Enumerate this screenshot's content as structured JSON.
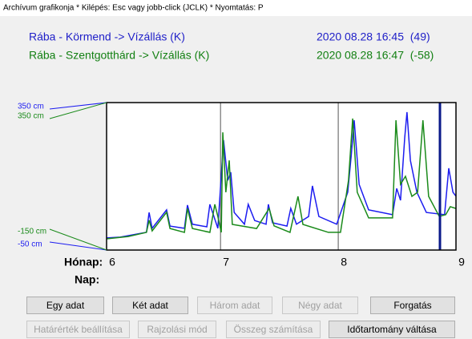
{
  "window_title": "Archívum grafikonja * Kilépés: Esc vagy jobb-click (JCLK) * Nyomtatás: P",
  "chart_data": {
    "type": "line",
    "x_label_month": "Hónap:",
    "x_label_day": "Nap:",
    "xlim": [
      0,
      92
    ],
    "xticks": [
      {
        "value": 0,
        "label": "6"
      },
      {
        "value": 30,
        "label": "7"
      },
      {
        "value": 61,
        "label": "8"
      },
      {
        "value": 92,
        "label": "9"
      }
    ],
    "ylim": [
      -50,
      350
    ],
    "yticks": [
      {
        "value": 350,
        "label": "350 cm"
      },
      {
        "value": -50,
        "label": "-50 cm"
      }
    ],
    "y2lim": [
      -150,
      350
    ],
    "y2ticks": [
      {
        "value": 350,
        "label": "350 cm"
      },
      {
        "value": -150,
        "label": "-150 cm"
      }
    ],
    "series": [
      {
        "name": "Rába - Körmend -> Vízállás (K)",
        "status": "2020 08.28 16:45  (49)",
        "color": "#1c1cf0",
        "x": [
          0,
          3.6,
          10.5,
          11.2,
          12,
          15.8,
          16.7,
          20.5,
          21.3,
          22.6,
          26.4,
          27.2,
          29.3,
          30.8,
          31.9,
          32.7,
          33.6,
          36.3,
          37.3,
          39,
          42,
          42.6,
          43.7,
          47.5,
          48.5,
          50,
          53.2,
          54.2,
          55.9,
          60.6,
          63.5,
          64.4,
          65.2,
          66.5,
          69,
          75.3,
          76.4,
          77.4,
          78.5,
          79.1,
          80,
          81.7,
          84.2,
          89,
          90.1,
          91.2,
          92
        ],
        "values": [
          -17,
          -15,
          -2,
          52,
          9,
          59,
          15,
          9,
          72,
          20,
          13,
          74,
          9,
          248,
          139,
          161,
          52,
          20,
          74,
          30,
          20,
          74,
          24,
          15,
          63,
          20,
          41,
          124,
          41,
          20,
          107,
          204,
          302,
          128,
          59,
          46,
          117,
          85,
          254,
          324,
          193,
          107,
          52,
          46,
          172,
          107,
          96
        ]
      },
      {
        "name": "Rába - Szentgotthárd -> Vízállás (K)",
        "status": "2020 08.28 16:47  (-58)",
        "color": "#1a8a1a",
        "axis": "y2",
        "x": [
          0,
          5.7,
          10.5,
          11.2,
          12,
          15.8,
          16.7,
          20.5,
          21.3,
          22.6,
          27.2,
          28.5,
          29.3,
          30.2,
          30.6,
          31.4,
          32.3,
          33.1,
          39.5,
          42.8,
          44.1,
          48.3,
          50.4,
          51.7,
          58.4,
          61.6,
          63.7,
          64.8,
          66,
          69,
          75.3,
          76.2,
          77.4,
          78.7,
          80.4,
          81.9,
          83.3,
          84.8,
          87.6,
          89.3,
          90.5,
          92
        ],
        "values": [
          -112,
          -104,
          -90,
          -49,
          -85,
          -22,
          -77,
          -90,
          -9,
          -77,
          -90,
          5,
          -36,
          -90,
          249,
          46,
          154,
          -63,
          -77,
          -9,
          -68,
          -90,
          32,
          -63,
          -90,
          -90,
          86,
          296,
          46,
          -41,
          -41,
          290,
          73,
          100,
          32,
          46,
          290,
          32,
          -36,
          -30,
          -3,
          -9
        ]
      }
    ]
  },
  "buttons": [
    {
      "label": "Egy adat",
      "enabled": true
    },
    {
      "label": "Két adat",
      "enabled": true
    },
    {
      "label": "Három adat",
      "enabled": false
    },
    {
      "label": "Négy adat",
      "enabled": false
    },
    {
      "label": "Forgatás",
      "enabled": true
    },
    {
      "label": "Határérték beállítása",
      "enabled": false
    },
    {
      "label": "Rajzolási mód",
      "enabled": false
    },
    {
      "label": "Összeg számítása",
      "enabled": false
    },
    {
      "label": "Időtartomány váltása",
      "enabled": true
    }
  ]
}
